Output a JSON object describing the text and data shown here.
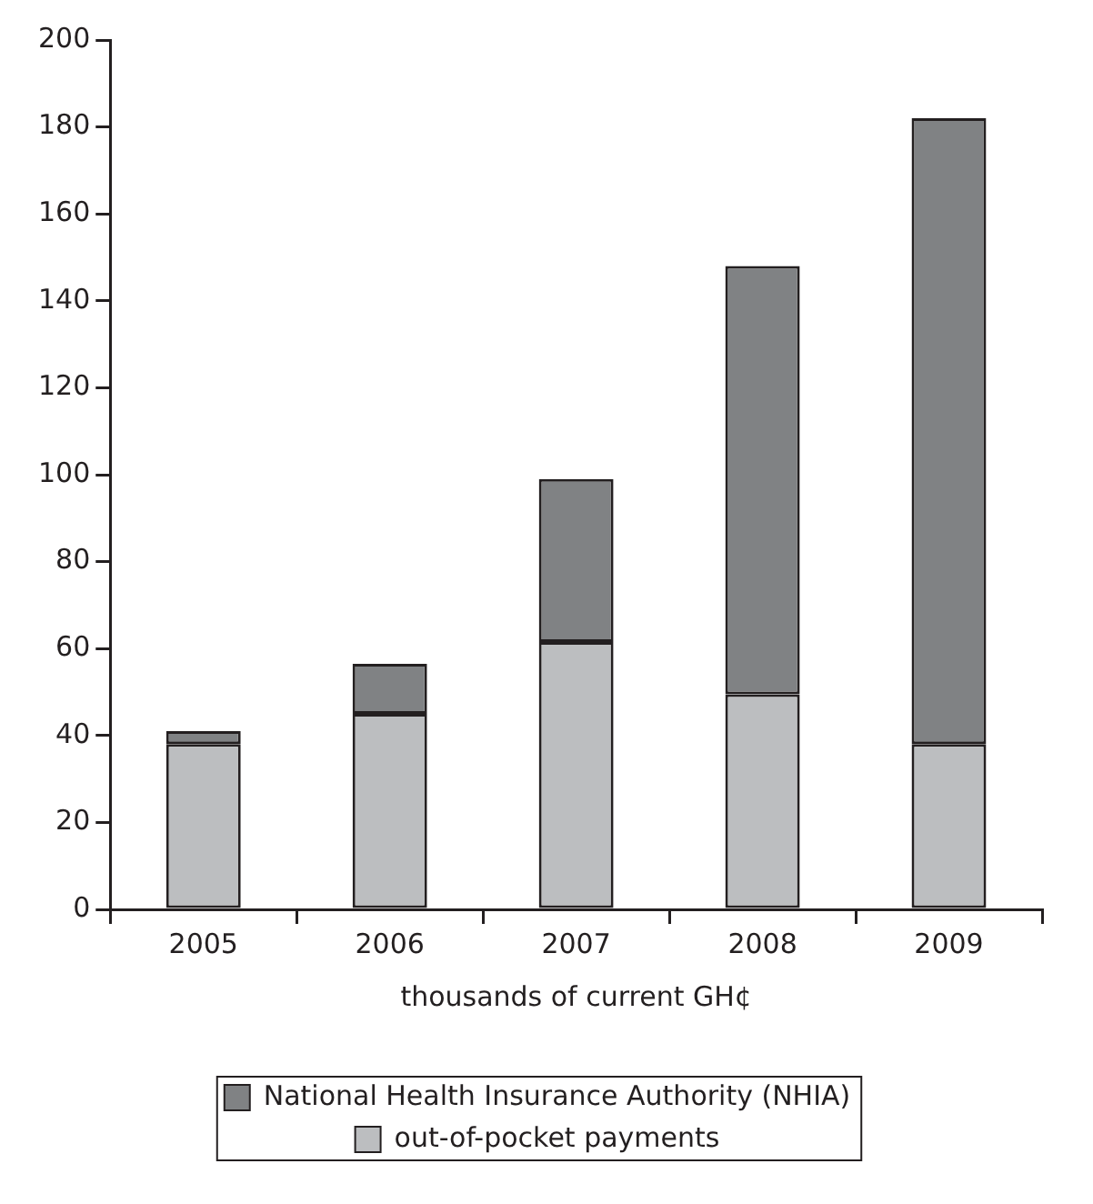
{
  "chart_data": {
    "type": "bar",
    "stacked": true,
    "xlabel": "thousands of current GH¢",
    "categories": [
      "2005",
      "2006",
      "2007",
      "2008",
      "2009"
    ],
    "series": [
      {
        "name": "out-of-pocket payments",
        "color": "#bcbec0",
        "values": [
          38,
          45,
          61.5,
          49.5,
          38
        ]
      },
      {
        "name": "National Health Insurance Authority (NHIA)",
        "color": "#808284",
        "values": [
          3,
          11.5,
          37.5,
          98.5,
          144
        ]
      }
    ],
    "ylim": [
      0,
      200
    ],
    "yticks": [
      0,
      20,
      40,
      60,
      80,
      100,
      120,
      140,
      160,
      180,
      200
    ],
    "grid": false,
    "legend": "bottom"
  }
}
